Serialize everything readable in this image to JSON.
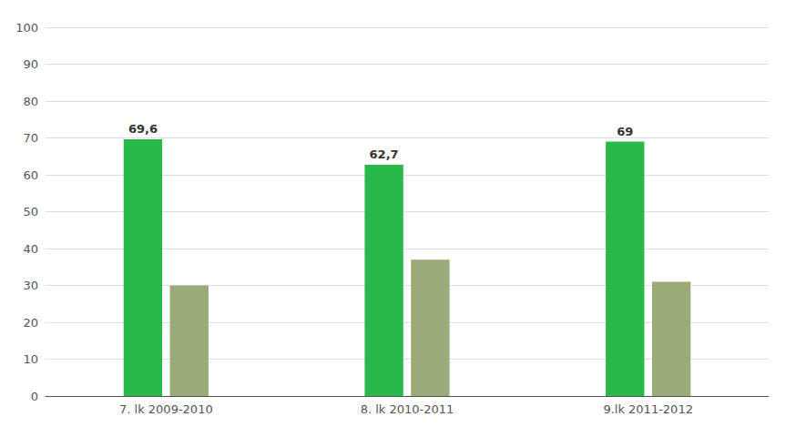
{
  "chart_data": {
    "type": "bar",
    "categories": [
      "7. lk 2009-2010",
      "8. lk 2010-2011",
      "9.lk 2011-2012"
    ],
    "series": [
      {
        "color": "#29b84a",
        "values": [
          69.6,
          62.7,
          69
        ],
        "value_labels": [
          "69,6",
          "62,7",
          "69"
        ],
        "data_labels": true
      },
      {
        "color": "#9aab78",
        "values": [
          30,
          37,
          31
        ]
      }
    ],
    "ylim": [
      0,
      100
    ],
    "yticks": [
      0,
      10,
      20,
      30,
      40,
      50,
      60,
      70,
      80,
      90,
      100
    ],
    "grid": true
  }
}
